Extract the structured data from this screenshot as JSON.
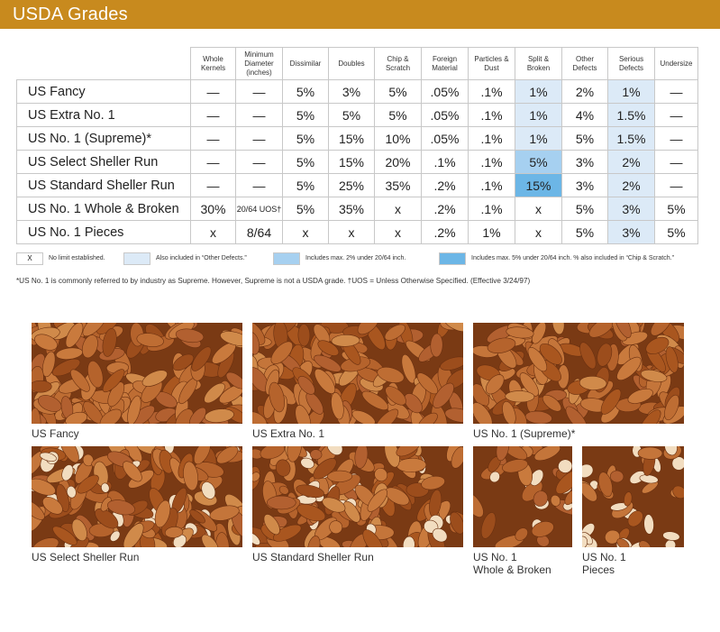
{
  "header": {
    "title": "USDA Grades"
  },
  "table": {
    "columns": [
      "Whole Kernels",
      "Minimum Diameter (inches)",
      "Dissimilar",
      "Doubles",
      "Chip & Scratch",
      "Foreign Material",
      "Particles & Dust",
      "Split & Broken",
      "Other Defects",
      "Serious Defects",
      "Undersize"
    ],
    "rows": [
      {
        "grade": "US Fancy",
        "cells": [
          "—",
          "—",
          "5%",
          "3%",
          "5%",
          ".05%",
          ".1%",
          "1%",
          "2%",
          "1%",
          "—"
        ]
      },
      {
        "grade": "US Extra No. 1",
        "cells": [
          "—",
          "—",
          "5%",
          "5%",
          "5%",
          ".05%",
          ".1%",
          "1%",
          "4%",
          "1.5%",
          "—"
        ]
      },
      {
        "grade": "US No. 1 (Supreme)*",
        "cells": [
          "—",
          "—",
          "5%",
          "15%",
          "10%",
          ".05%",
          ".1%",
          "1%",
          "5%",
          "1.5%",
          "—"
        ]
      },
      {
        "grade": "US Select Sheller Run",
        "cells": [
          "—",
          "—",
          "5%",
          "15%",
          "20%",
          ".1%",
          ".1%",
          "5%",
          "3%",
          "2%",
          "—"
        ]
      },
      {
        "grade": "US Standard Sheller Run",
        "cells": [
          "—",
          "—",
          "5%",
          "25%",
          "35%",
          ".2%",
          ".1%",
          "15%",
          "3%",
          "2%",
          "—"
        ]
      },
      {
        "grade": "US No. 1 Whole & Broken",
        "cells": [
          "30%",
          "20/64 UOS†",
          "5%",
          "35%",
          "x",
          ".2%",
          ".1%",
          "x",
          "5%",
          "3%",
          "5%"
        ]
      },
      {
        "grade": "US No. 1 Pieces",
        "cells": [
          "x",
          "8/64",
          "x",
          "x",
          "x",
          ".2%",
          "1%",
          "x",
          "5%",
          "3%",
          "5%"
        ]
      }
    ]
  },
  "legend": {
    "x_symbol": "X",
    "x_label": "No limit established.",
    "light_label": "Also included in “Other Defects.”",
    "medium_label": "Includes max. 2% under 20/64 inch.",
    "dark_label": "Includes max. 5% under 20/64 inch. % also included in “Chip & Scratch.”",
    "colors": {
      "light": "#dceaf7",
      "medium": "#a6d0f0",
      "dark": "#6cb6e6"
    }
  },
  "footnote": "*US No. 1 is commonly referred to by industry as Supreme. However, Supreme is not a USDA grade. †UOS = Unless Otherwise Specified. (Effective 3/24/97)",
  "photos": [
    {
      "caption": "US Fancy"
    },
    {
      "caption": "US Extra No. 1"
    },
    {
      "caption": "US No. 1 (Supreme)*"
    },
    {
      "caption": "US Select Sheller Run"
    },
    {
      "caption": "US Standard Sheller Run"
    },
    {
      "caption_line1": "US No. 1",
      "caption_line2": "Whole & Broken"
    },
    {
      "caption_line1": "US No. 1",
      "caption_line2": "Pieces"
    }
  ],
  "brand_color": "#c88a1e"
}
